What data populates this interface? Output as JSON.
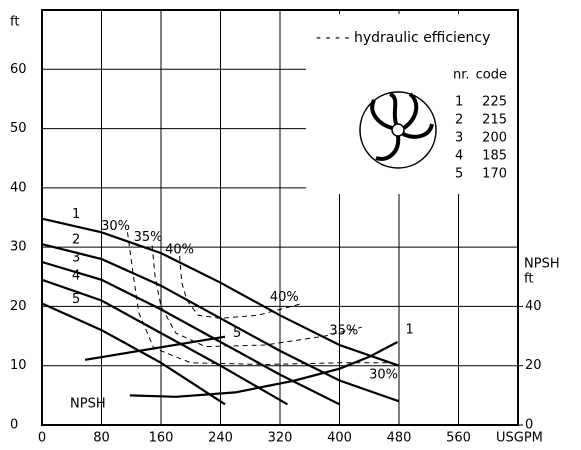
{
  "chart_data": {
    "type": "line",
    "y_label": "ft",
    "x_label": "USGPM",
    "y2_label": [
      "NPSH",
      "ft"
    ],
    "xlim": [
      0,
      640
    ],
    "xticks": [
      0,
      80,
      160,
      240,
      320,
      400,
      480,
      560
    ],
    "ylim": [
      0,
      70
    ],
    "yticks": [
      0,
      10,
      20,
      30,
      40,
      50,
      60
    ],
    "y2lim": [
      0,
      140
    ],
    "y2ticks": [
      0,
      20,
      40
    ],
    "color": "#000000",
    "series": [
      {
        "name": "1",
        "x": [
          0,
          80,
          160,
          240,
          320,
          400,
          480
        ],
        "values": [
          34.8,
          32.5,
          29,
          24,
          18.5,
          13.5,
          10
        ]
      },
      {
        "name": "2",
        "x": [
          0,
          80,
          160,
          240,
          320,
          400,
          480
        ],
        "values": [
          30.5,
          28,
          23.5,
          18,
          12.5,
          7.5,
          4
        ]
      },
      {
        "name": "3",
        "x": [
          0,
          80,
          160,
          240,
          320,
          400
        ],
        "values": [
          27.5,
          24.5,
          19.5,
          14,
          8.5,
          3.5
        ]
      },
      {
        "name": "4",
        "x": [
          0,
          80,
          160,
          240,
          330
        ],
        "values": [
          24.5,
          21,
          15.5,
          10,
          3.5
        ]
      },
      {
        "name": "5",
        "x": [
          0,
          80,
          160,
          246
        ],
        "values": [
          20.5,
          16,
          10.5,
          3.5
        ]
      }
    ],
    "npsh_label": "NPSH",
    "npsh_series": [
      {
        "name": "1",
        "axis": "y2",
        "x": [
          118,
          180,
          260,
          340,
          400,
          440,
          478
        ],
        "values": [
          10,
          9.5,
          11,
          15,
          19,
          23,
          28
        ]
      },
      {
        "name": "5",
        "axis": "y2",
        "x": [
          58,
          246
        ],
        "values": [
          22,
          29.8
        ]
      }
    ],
    "efficiency": {
      "legend": "- - - - hydraulic efficiency",
      "series": [
        {
          "name": "30%",
          "x": [
            115,
            122,
            130,
            150,
            200,
            300,
            400,
            470
          ],
          "values": [
            32.5,
            26,
            19,
            13,
            10.5,
            10.2,
            10.5,
            10.5
          ]
        },
        {
          "name": "35%",
          "x": [
            148,
            152,
            160,
            180,
            220,
            300,
            380,
            430
          ],
          "values": [
            30.3,
            25,
            20,
            15.5,
            13.2,
            13.5,
            15,
            16.5
          ]
        },
        {
          "name": "40%",
          "x": [
            185,
            188,
            195,
            210,
            240,
            290,
            350
          ],
          "values": [
            28.5,
            24,
            21,
            18.5,
            18,
            18.5,
            20.5
          ]
        }
      ]
    },
    "table": {
      "header": [
        "nr.",
        "code"
      ],
      "rows": [
        [
          1,
          225
        ],
        [
          2,
          215
        ],
        [
          3,
          200
        ],
        [
          4,
          185
        ],
        [
          5,
          170
        ]
      ]
    }
  }
}
